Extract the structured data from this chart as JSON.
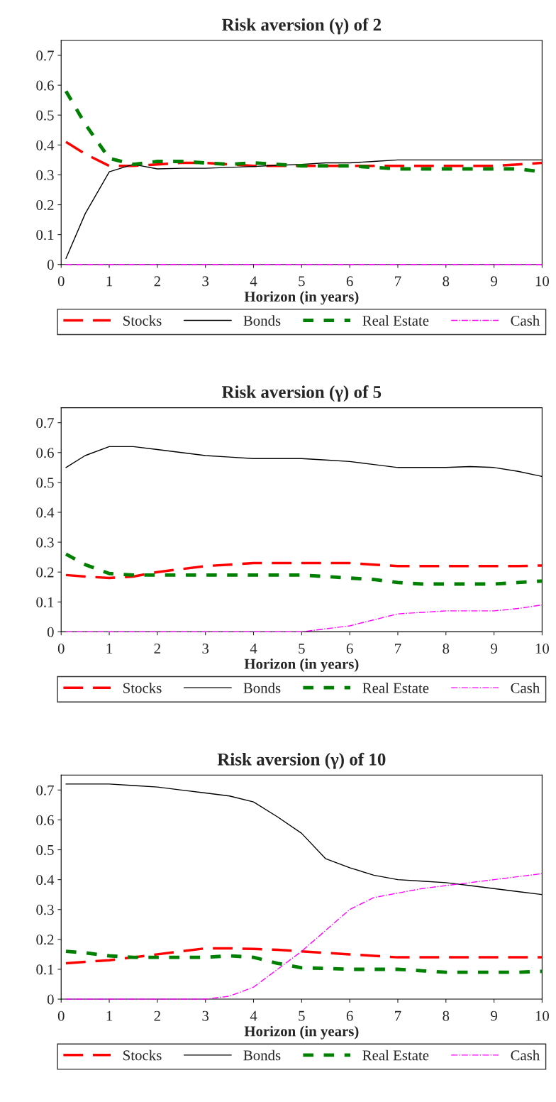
{
  "chart_data": [
    {
      "type": "line",
      "title": "Risk aversion (γ) of 2",
      "xlabel": "Horizon (in years)",
      "xlim": [
        0,
        10
      ],
      "ylim": [
        0,
        0.75
      ],
      "xticks": [
        0,
        1,
        2,
        3,
        4,
        5,
        6,
        7,
        8,
        9,
        10
      ],
      "yticks": [
        0,
        0.1,
        0.2,
        0.3,
        0.4,
        0.5,
        0.6,
        0.7
      ],
      "legend": "bottom",
      "x": [
        0.1,
        0.5,
        1,
        1.5,
        2,
        2.5,
        3,
        3.5,
        4,
        4.5,
        5,
        5.5,
        6,
        6.5,
        7,
        7.5,
        8,
        8.5,
        9,
        9.5,
        10
      ],
      "series": [
        {
          "name": "Stocks",
          "color": "#ff0000",
          "line_style": "dashed",
          "values": [
            0.41,
            0.37,
            0.33,
            0.33,
            0.335,
            0.34,
            0.34,
            0.335,
            0.33,
            0.33,
            0.33,
            0.33,
            0.33,
            0.33,
            0.33,
            0.33,
            0.33,
            0.33,
            0.33,
            0.335,
            0.34
          ]
        },
        {
          "name": "Bonds",
          "color": "#000000",
          "line_style": "solid",
          "values": [
            0.02,
            0.17,
            0.31,
            0.335,
            0.32,
            0.322,
            0.322,
            0.325,
            0.328,
            0.332,
            0.335,
            0.34,
            0.34,
            0.345,
            0.35,
            0.35,
            0.35,
            0.35,
            0.35,
            0.35,
            0.35
          ]
        },
        {
          "name": "Real Estate",
          "color": "#008000",
          "line_style": "dotted",
          "values": [
            0.58,
            0.47,
            0.355,
            0.335,
            0.345,
            0.345,
            0.34,
            0.335,
            0.34,
            0.335,
            0.33,
            0.33,
            0.33,
            0.325,
            0.32,
            0.32,
            0.32,
            0.32,
            0.32,
            0.32,
            0.31
          ]
        },
        {
          "name": "Cash",
          "color": "#ff00ff",
          "line_style": "dashdot",
          "values": [
            0,
            0,
            0,
            0,
            0,
            0,
            0,
            0,
            0,
            0,
            0,
            0,
            0,
            0,
            0,
            0,
            0,
            0,
            0,
            0,
            0
          ]
        }
      ]
    },
    {
      "type": "line",
      "title": "Risk aversion (γ) of 5",
      "xlabel": "Horizon (in years)",
      "xlim": [
        0,
        10
      ],
      "ylim": [
        0,
        0.75
      ],
      "xticks": [
        0,
        1,
        2,
        3,
        4,
        5,
        6,
        7,
        8,
        9,
        10
      ],
      "yticks": [
        0,
        0.1,
        0.2,
        0.3,
        0.4,
        0.5,
        0.6,
        0.7
      ],
      "legend": "bottom",
      "x": [
        0.1,
        0.5,
        1,
        1.5,
        2,
        2.5,
        3,
        3.5,
        4,
        4.5,
        5,
        5.5,
        6,
        6.5,
        7,
        7.5,
        8,
        8.5,
        9,
        9.5,
        10
      ],
      "series": [
        {
          "name": "Stocks",
          "color": "#ff0000",
          "line_style": "dashed",
          "values": [
            0.19,
            0.185,
            0.18,
            0.185,
            0.2,
            0.21,
            0.22,
            0.225,
            0.23,
            0.23,
            0.23,
            0.23,
            0.23,
            0.225,
            0.22,
            0.22,
            0.22,
            0.22,
            0.22,
            0.22,
            0.222
          ]
        },
        {
          "name": "Bonds",
          "color": "#000000",
          "line_style": "solid",
          "values": [
            0.55,
            0.59,
            0.62,
            0.62,
            0.61,
            0.6,
            0.59,
            0.585,
            0.58,
            0.58,
            0.58,
            0.575,
            0.57,
            0.56,
            0.55,
            0.55,
            0.55,
            0.553,
            0.55,
            0.537,
            0.52
          ]
        },
        {
          "name": "Real Estate",
          "color": "#008000",
          "line_style": "dotted",
          "values": [
            0.26,
            0.225,
            0.195,
            0.19,
            0.19,
            0.19,
            0.19,
            0.19,
            0.19,
            0.19,
            0.19,
            0.185,
            0.18,
            0.175,
            0.165,
            0.16,
            0.16,
            0.16,
            0.16,
            0.165,
            0.17
          ]
        },
        {
          "name": "Cash",
          "color": "#ff00ff",
          "line_style": "dashdot",
          "values": [
            0,
            0,
            0,
            0,
            0,
            0,
            0,
            0,
            0,
            0,
            0,
            0.01,
            0.02,
            0.04,
            0.06,
            0.065,
            0.07,
            0.07,
            0.07,
            0.078,
            0.09
          ]
        }
      ]
    },
    {
      "type": "line",
      "title": "Risk aversion (γ) of 10",
      "xlabel": "Horizon (in years)",
      "xlim": [
        0,
        10
      ],
      "ylim": [
        0,
        0.75
      ],
      "xticks": [
        0,
        1,
        2,
        3,
        4,
        5,
        6,
        7,
        8,
        9,
        10
      ],
      "yticks": [
        0,
        0.1,
        0.2,
        0.3,
        0.4,
        0.5,
        0.6,
        0.7
      ],
      "legend": "bottom",
      "x": [
        0.1,
        0.5,
        1,
        1.5,
        2,
        2.5,
        3,
        3.5,
        4,
        4.5,
        5,
        5.5,
        6,
        6.5,
        7,
        7.5,
        8,
        8.5,
        9,
        9.5,
        10
      ],
      "series": [
        {
          "name": "Stocks",
          "color": "#ff0000",
          "line_style": "dashed",
          "values": [
            0.12,
            0.125,
            0.13,
            0.14,
            0.15,
            0.16,
            0.17,
            0.17,
            0.168,
            0.165,
            0.16,
            0.155,
            0.15,
            0.145,
            0.14,
            0.14,
            0.14,
            0.14,
            0.14,
            0.14,
            0.14
          ]
        },
        {
          "name": "Bonds",
          "color": "#000000",
          "line_style": "solid",
          "values": [
            0.72,
            0.72,
            0.72,
            0.715,
            0.71,
            0.7,
            0.69,
            0.68,
            0.66,
            0.61,
            0.555,
            0.47,
            0.44,
            0.415,
            0.4,
            0.395,
            0.39,
            0.38,
            0.37,
            0.36,
            0.35
          ]
        },
        {
          "name": "Real Estate",
          "color": "#008000",
          "line_style": "dotted",
          "values": [
            0.16,
            0.155,
            0.145,
            0.14,
            0.14,
            0.14,
            0.14,
            0.145,
            0.14,
            0.12,
            0.105,
            0.103,
            0.1,
            0.1,
            0.1,
            0.095,
            0.09,
            0.09,
            0.09,
            0.09,
            0.093
          ]
        },
        {
          "name": "Cash",
          "color": "#ff00ff",
          "line_style": "dashdot",
          "values": [
            0,
            0,
            0,
            0,
            0,
            0,
            0,
            0.01,
            0.04,
            0.1,
            0.16,
            0.23,
            0.3,
            0.34,
            0.355,
            0.37,
            0.38,
            0.39,
            0.4,
            0.41,
            0.42
          ]
        }
      ]
    }
  ]
}
